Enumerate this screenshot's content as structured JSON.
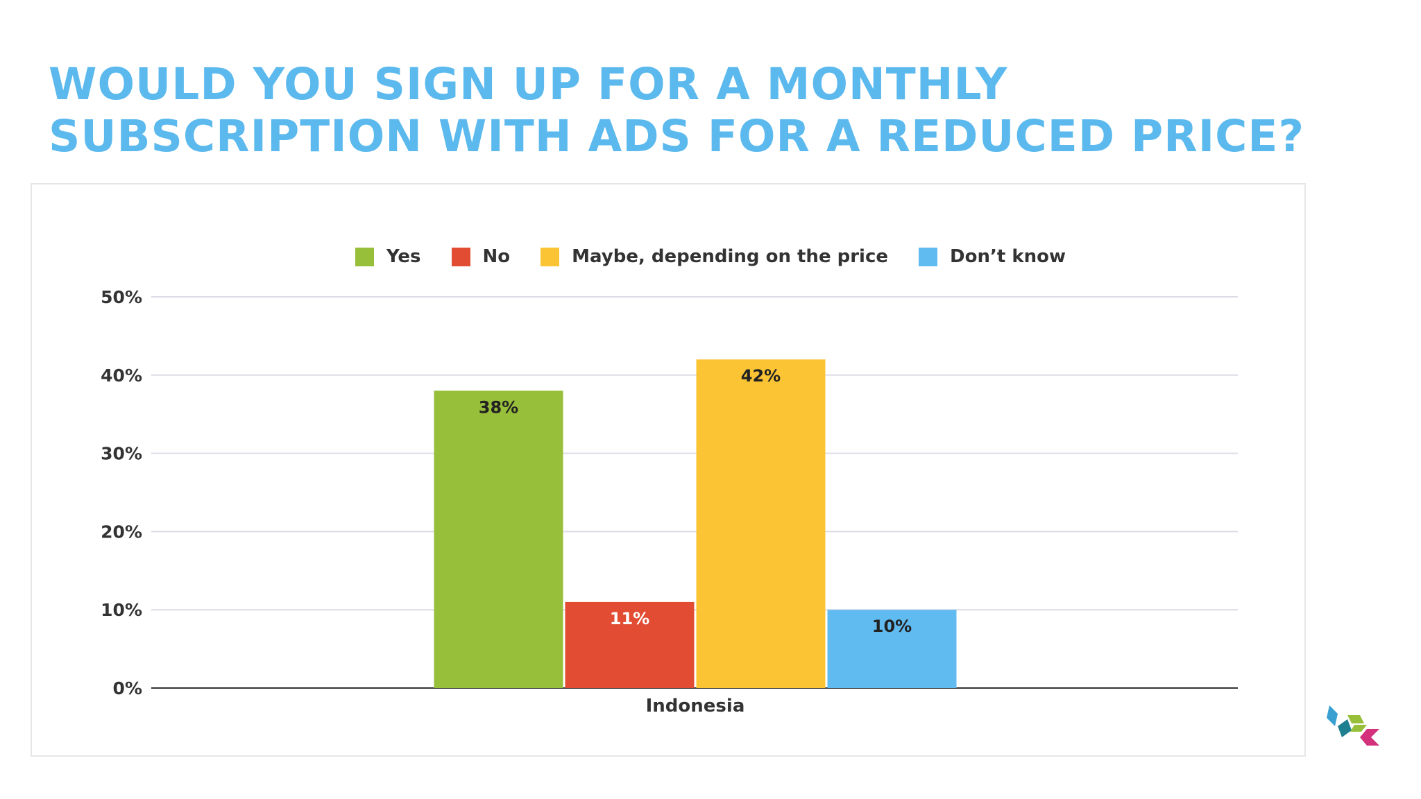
{
  "title": {
    "line1": "WOULD YOU SIGN UP FOR A MONTHLY",
    "line2": "SUBSCRIPTION WITH ADS FOR A REDUCED PRICE?"
  },
  "colors": {
    "title": "#5bb9ee",
    "grid": "#dedbe6",
    "axis": "#333333",
    "text": "#333333"
  },
  "chart_data": {
    "type": "bar",
    "categories": [
      "Indonesia"
    ],
    "series": [
      {
        "name": "Yes",
        "values": [
          38
        ],
        "color": "#98bf3a",
        "label": "38%",
        "label_color": "#222222"
      },
      {
        "name": "No",
        "values": [
          11
        ],
        "color": "#e14c32",
        "label": "11%",
        "label_color": "#ffffff"
      },
      {
        "name": "Maybe, depending on the price",
        "values": [
          42
        ],
        "color": "#fbc434",
        "label": "42%",
        "label_color": "#222222"
      },
      {
        "name": "Don’t know",
        "values": [
          10
        ],
        "color": "#60bbf1",
        "label": "10%",
        "label_color": "#222222"
      }
    ],
    "ylim": [
      0,
      50
    ],
    "yticks": [
      0,
      10,
      20,
      30,
      40,
      50
    ],
    "ytick_labels": [
      "0%",
      "10%",
      "20%",
      "30%",
      "40%",
      "50%"
    ],
    "grid": true,
    "legend_position": "top-center",
    "xlabel": "",
    "ylabel": ""
  },
  "logo": {
    "name": "brand-logo",
    "colors": [
      "#3a9fd1",
      "#1f7f8e",
      "#98bf3a",
      "#d4317c"
    ]
  }
}
